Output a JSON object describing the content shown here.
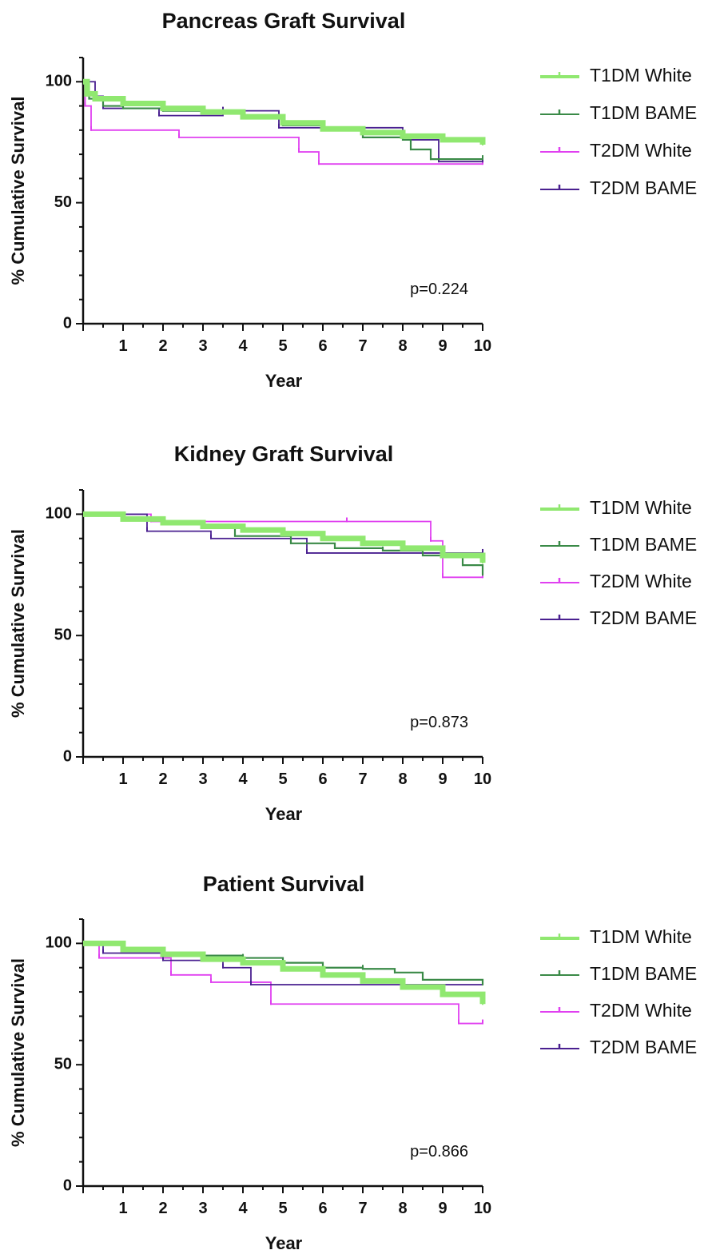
{
  "colors": {
    "T1DM White": "#90e870",
    "T1DM BAME": "#3a8a47",
    "T2DM White": "#e040f0",
    "T2DM BAME": "#4a2090"
  },
  "chart_data": [
    {
      "type": "line",
      "subtype": "kaplan-meier step",
      "title": "Pancreas Graft Survival",
      "xlabel": "Year",
      "ylabel": "% Cumulative Survival",
      "xlim": [
        0,
        10
      ],
      "ylim": [
        0,
        110
      ],
      "xticks": [
        1,
        2,
        3,
        4,
        5,
        6,
        7,
        8,
        9,
        10
      ],
      "yticks": [
        0,
        50,
        100
      ],
      "annotation": "p=0.224",
      "legend_position": "right",
      "series": [
        {
          "name": "T1DM White",
          "x": [
            0,
            0.1,
            0.3,
            1,
            2,
            3,
            4,
            5,
            6,
            7,
            8,
            9,
            10
          ],
          "y": [
            100,
            95,
            93,
            91,
            89,
            87.5,
            85.5,
            83,
            80.5,
            79,
            77.5,
            76,
            74
          ]
        },
        {
          "name": "T1DM BAME",
          "x": [
            0,
            0.15,
            0.5,
            1,
            2,
            3,
            4,
            5,
            6,
            7,
            8,
            8.2,
            8.7,
            10
          ],
          "y": [
            100,
            93,
            90,
            89,
            88,
            87,
            86,
            82,
            80,
            77,
            76,
            72,
            68,
            68
          ]
        },
        {
          "name": "T2DM White",
          "x": [
            0,
            0.05,
            0.2,
            2.4,
            5.4,
            5.9,
            10
          ],
          "y": [
            100,
            90,
            80,
            77,
            71,
            66,
            66
          ]
        },
        {
          "name": "T2DM BAME",
          "x": [
            0,
            0.3,
            0.5,
            1.9,
            3.5,
            4.9,
            8,
            8.9,
            10
          ],
          "y": [
            100,
            94,
            89,
            86,
            88,
            81,
            76,
            67,
            67
          ]
        }
      ]
    },
    {
      "type": "line",
      "subtype": "kaplan-meier step",
      "title": "Kidney Graft Survival",
      "xlabel": "Year",
      "ylabel": "% Cumulative Survival",
      "xlim": [
        0,
        10
      ],
      "ylim": [
        0,
        110
      ],
      "xticks": [
        1,
        2,
        3,
        4,
        5,
        6,
        7,
        8,
        9,
        10
      ],
      "yticks": [
        0,
        50,
        100
      ],
      "annotation": "p=0.873",
      "legend_position": "right",
      "series": [
        {
          "name": "T1DM White",
          "x": [
            0,
            1,
            2,
            3,
            4,
            5,
            6,
            7,
            8,
            9,
            10
          ],
          "y": [
            100,
            98,
            96.5,
            95,
            93.5,
            92,
            90,
            88,
            86,
            83,
            80
          ]
        },
        {
          "name": "T1DM BAME",
          "x": [
            0,
            1,
            2,
            3,
            3.8,
            5.2,
            6.3,
            7.5,
            8.5,
            9.5,
            10
          ],
          "y": [
            100,
            98,
            97,
            95,
            91,
            88,
            86,
            85,
            83,
            79,
            75
          ]
        },
        {
          "name": "T2DM White",
          "x": [
            0,
            1.7,
            6.6,
            8.7,
            9,
            10
          ],
          "y": [
            100,
            97,
            97,
            89,
            74,
            74
          ]
        },
        {
          "name": "T2DM BAME",
          "x": [
            0,
            1.6,
            3.2,
            5.6,
            10
          ],
          "y": [
            100,
            93,
            90,
            84,
            84
          ]
        }
      ]
    },
    {
      "type": "line",
      "subtype": "kaplan-meier step",
      "title": "Patient Survival",
      "xlabel": "Year",
      "ylabel": "% Cumulative Survival",
      "xlim": [
        0,
        10
      ],
      "ylim": [
        0,
        110
      ],
      "xticks": [
        1,
        2,
        3,
        4,
        5,
        6,
        7,
        8,
        9,
        10
      ],
      "yticks": [
        0,
        50,
        100
      ],
      "annotation": "p=0.866",
      "legend_position": "right",
      "series": [
        {
          "name": "T1DM White",
          "x": [
            0,
            1,
            2,
            3,
            4,
            5,
            6,
            7,
            8,
            9,
            10
          ],
          "y": [
            100,
            97.5,
            95.5,
            93.5,
            92,
            89.5,
            87,
            84.5,
            82,
            79,
            75
          ]
        },
        {
          "name": "T1DM BAME",
          "x": [
            0,
            1,
            2,
            3,
            4,
            5,
            6,
            7,
            7.8,
            8.5,
            10
          ],
          "y": [
            100,
            98,
            96,
            95,
            94,
            92,
            90,
            89.5,
            88,
            85,
            83
          ]
        },
        {
          "name": "T2DM White",
          "x": [
            0,
            0.4,
            2.2,
            3.2,
            4.7,
            9.4,
            10
          ],
          "y": [
            100,
            94,
            87,
            84,
            75,
            67,
            67
          ]
        },
        {
          "name": "T2DM BAME",
          "x": [
            0,
            0.5,
            2,
            3.5,
            4.2,
            10
          ],
          "y": [
            100,
            96,
            93,
            90,
            83,
            83
          ]
        }
      ]
    }
  ]
}
